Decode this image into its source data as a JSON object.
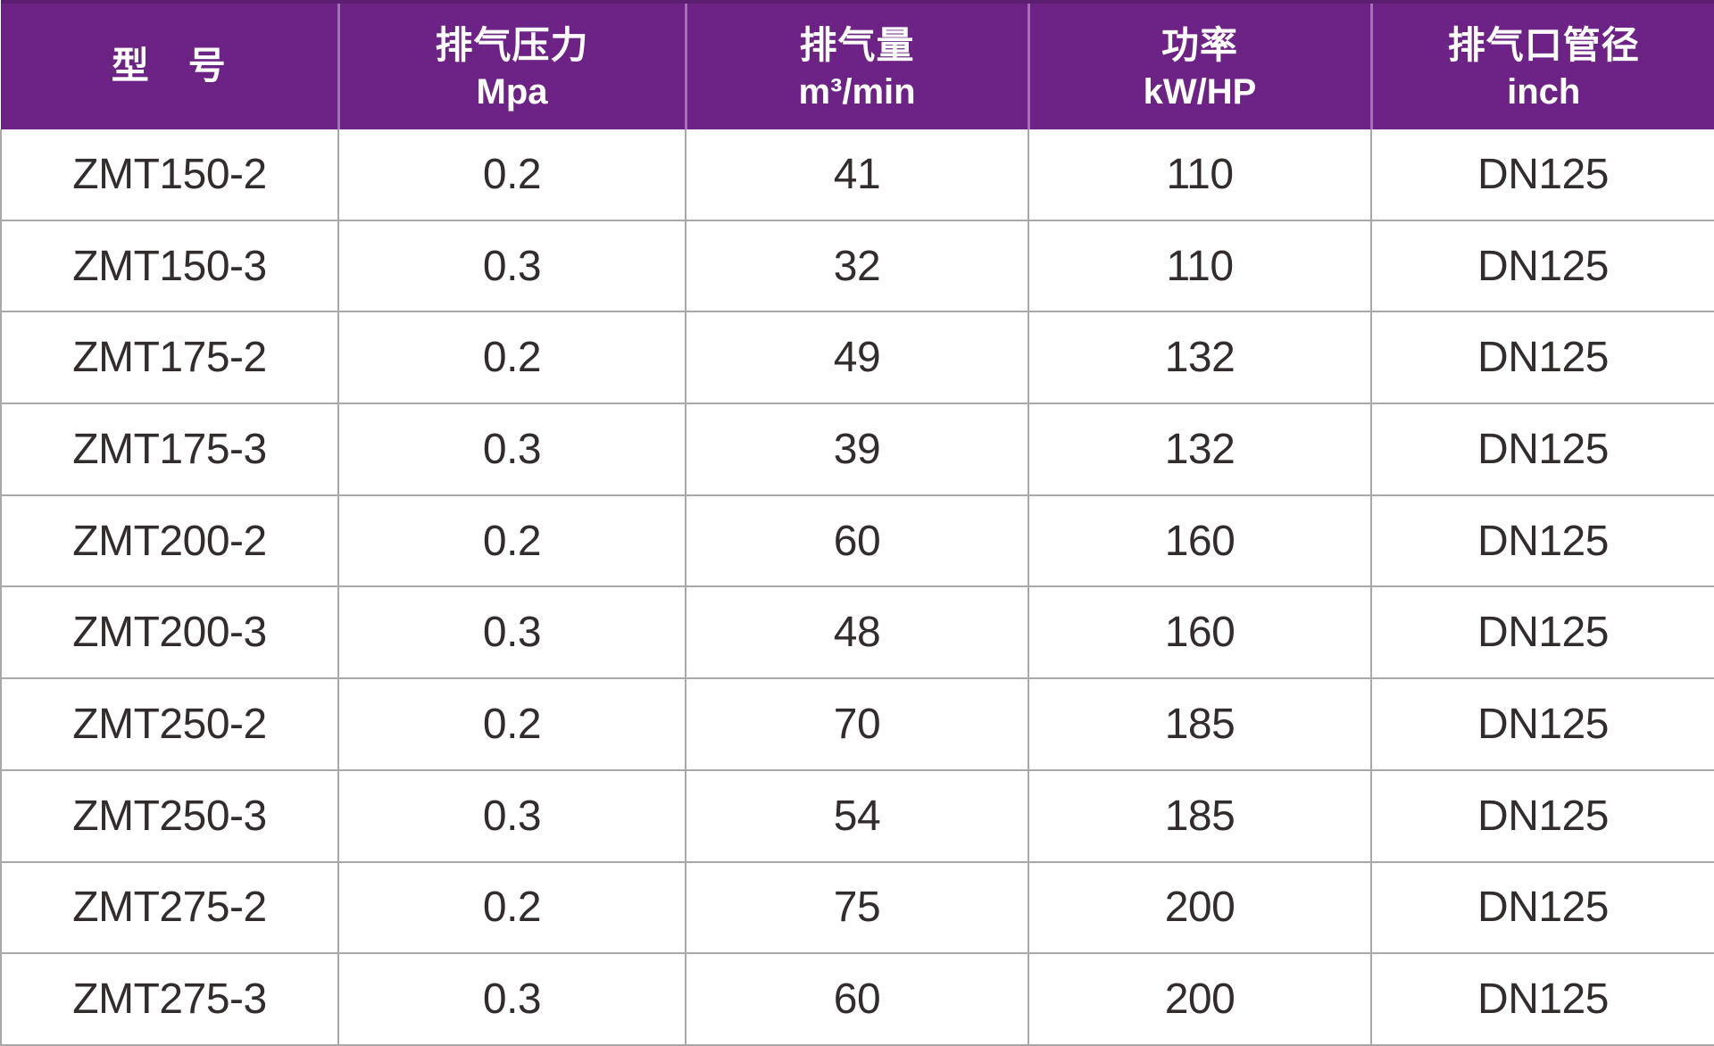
{
  "chart_data": {
    "type": "table",
    "columns": [
      {
        "key": "model",
        "label": "型　号",
        "unit": ""
      },
      {
        "key": "pressure",
        "label": "排气压力",
        "unit": "Mpa"
      },
      {
        "key": "displacement",
        "label": "排气量",
        "unit": "m³/min"
      },
      {
        "key": "power",
        "label": "功率",
        "unit": "kW/HP"
      },
      {
        "key": "pipe-diameter",
        "label": "排气口管径",
        "unit": "inch"
      }
    ],
    "rows": [
      [
        "ZMT150-2",
        "0.2",
        "41",
        "110",
        "DN125"
      ],
      [
        "ZMT150-3",
        "0.3",
        "32",
        "110",
        "DN125"
      ],
      [
        "ZMT175-2",
        "0.2",
        "49",
        "132",
        "DN125"
      ],
      [
        "ZMT175-3",
        "0.3",
        "39",
        "132",
        "DN125"
      ],
      [
        "ZMT200-2",
        "0.2",
        "60",
        "160",
        "DN125"
      ],
      [
        "ZMT200-3",
        "0.3",
        "48",
        "160",
        "DN125"
      ],
      [
        "ZMT250-2",
        "0.2",
        "70",
        "185",
        "DN125"
      ],
      [
        "ZMT250-3",
        "0.3",
        "54",
        "185",
        "DN125"
      ],
      [
        "ZMT275-2",
        "0.2",
        "75",
        "200",
        "DN125"
      ],
      [
        "ZMT275-3",
        "0.3",
        "60",
        "200",
        "DN125"
      ]
    ],
    "layout": {
      "header_rows": 1,
      "data_rows": 10,
      "grid": true
    }
  },
  "colors": {
    "header_bg": "#6d2385",
    "header_text": "#ffffff",
    "header_separator": "#a570b8",
    "header_top_edge": "#5c1e70",
    "grid_line": "#a8a8a8",
    "body_text": "#322c2c"
  }
}
